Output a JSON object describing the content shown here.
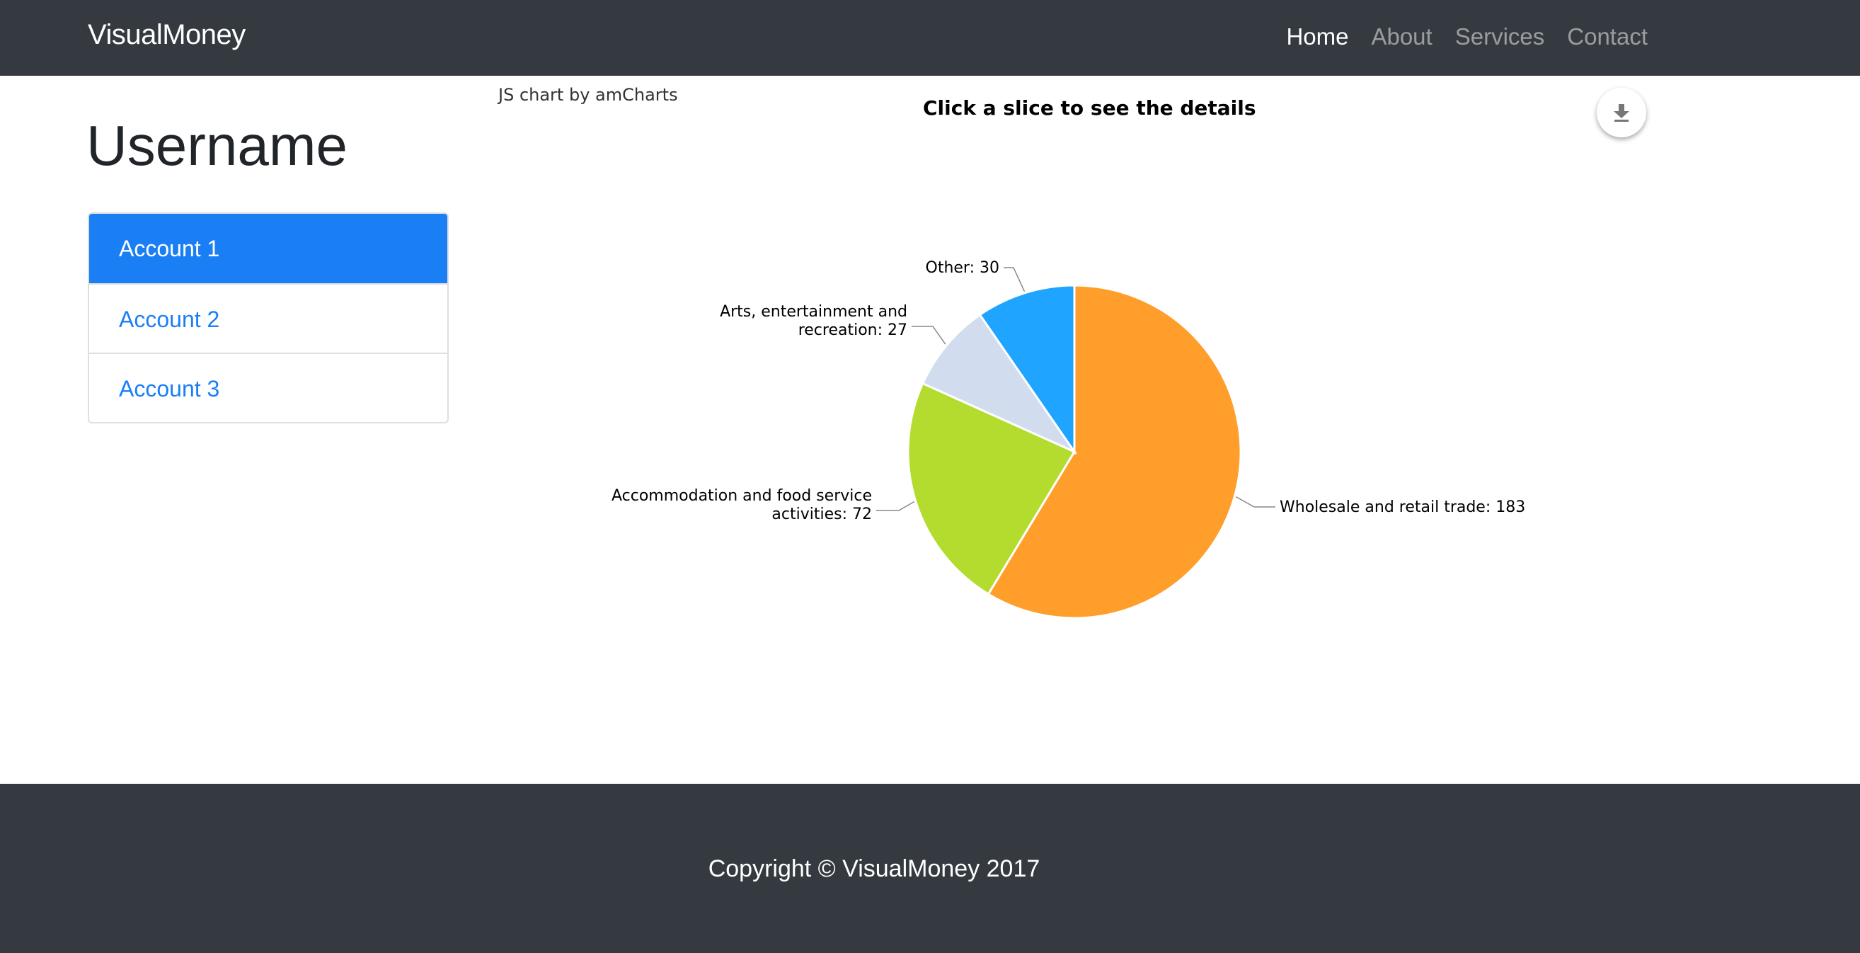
{
  "navbar": {
    "brand": "VisualMoney",
    "links": [
      {
        "label": "Home",
        "active": true
      },
      {
        "label": "About",
        "active": false
      },
      {
        "label": "Services",
        "active": false
      },
      {
        "label": "Contact",
        "active": false
      }
    ]
  },
  "sidebar": {
    "username": "Username",
    "accounts": [
      {
        "label": "Account 1",
        "active": true
      },
      {
        "label": "Account 2",
        "active": false
      },
      {
        "label": "Account 3",
        "active": false
      }
    ]
  },
  "chart_area": {
    "credit": "JS chart by amCharts",
    "export_icon": "download-icon"
  },
  "chart_data": {
    "type": "pie",
    "title": "Click a slice to see the details",
    "slices": [
      {
        "label": "Wholesale and retail trade",
        "value": 183,
        "color": "#ff9e2a"
      },
      {
        "label": "Accommodation and food service activities",
        "value": 72,
        "color": "#b3dc2e"
      },
      {
        "label": "Arts, entertainment and recreation",
        "value": 27,
        "color": "#d1ddee"
      },
      {
        "label": "Other",
        "value": 30,
        "color": "#1fa4ff"
      }
    ],
    "label_format": "{label}: {value}"
  },
  "footer": {
    "copyright": "Copyright © VisualMoney 2017"
  }
}
